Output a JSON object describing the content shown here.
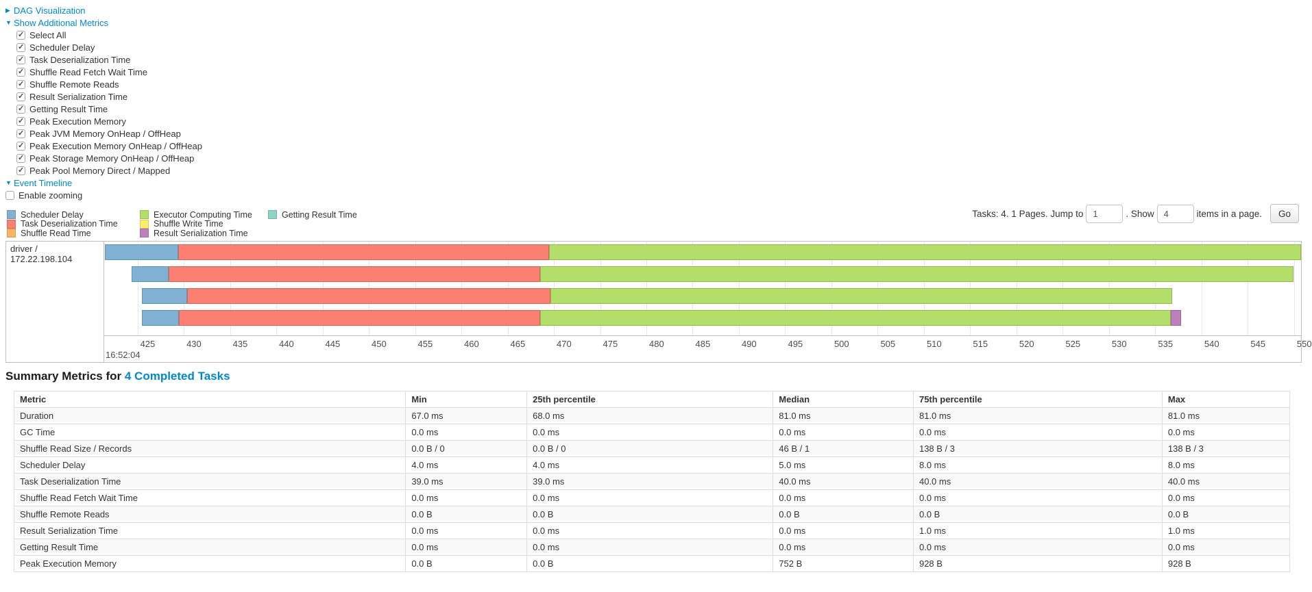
{
  "controls": {
    "dag": {
      "arrow": "▶",
      "label": "DAG Visualization"
    },
    "metrics_toggle": {
      "arrow": "▼",
      "label": "Show Additional Metrics"
    },
    "checkboxes": [
      {
        "label": "Select All",
        "checked": true
      },
      {
        "label": "Scheduler Delay",
        "checked": true
      },
      {
        "label": "Task Deserialization Time",
        "checked": true
      },
      {
        "label": "Shuffle Read Fetch Wait Time",
        "checked": true
      },
      {
        "label": "Shuffle Remote Reads",
        "checked": true
      },
      {
        "label": "Result Serialization Time",
        "checked": true
      },
      {
        "label": "Getting Result Time",
        "checked": true
      },
      {
        "label": "Peak Execution Memory",
        "checked": true
      },
      {
        "label": "Peak JVM Memory OnHeap / OffHeap",
        "checked": true
      },
      {
        "label": "Peak Execution Memory OnHeap / OffHeap",
        "checked": true
      },
      {
        "label": "Peak Storage Memory OnHeap / OffHeap",
        "checked": true
      },
      {
        "label": "Peak Pool Memory Direct / Mapped",
        "checked": true
      }
    ],
    "timeline_toggle": {
      "arrow": "▼",
      "label": "Event Timeline"
    },
    "enable_zooming": {
      "label": "Enable zooming",
      "checked": false
    }
  },
  "legend": {
    "columns": [
      [
        {
          "label": "Scheduler Delay",
          "color": "#80B1D3"
        },
        {
          "label": "Task Deserialization Time",
          "color": "#FB8072"
        },
        {
          "label": "Shuffle Read Time",
          "color": "#FDB462"
        }
      ],
      [
        {
          "label": "Executor Computing Time",
          "color": "#B3DE69"
        },
        {
          "label": "Shuffle Write Time",
          "color": "#FFED6F"
        },
        {
          "label": "Result Serialization Time",
          "color": "#BC80BD"
        }
      ],
      [
        {
          "label": "Getting Result Time",
          "color": "#8DD3C7"
        }
      ]
    ]
  },
  "pagination": {
    "prefix": "Tasks: 4. 1 Pages. Jump to",
    "jump_value": "1",
    "mid": ". Show",
    "show_value": "4",
    "suffix": "items in a page.",
    "go_label": "Go"
  },
  "chart_data": {
    "type": "timeline",
    "group_label": "driver / 172.22.198.104",
    "axis": {
      "domain": [
        421.4,
        550.75
      ],
      "tick_start": 425,
      "tick_end": 550,
      "tick_step": 5,
      "major_label": "16:52:04",
      "units": "seconds-of-minute"
    },
    "palette": {
      "scheduler_delay": "#80B1D3",
      "task_deserialization": "#FB8072",
      "shuffle_read": "#FDB462",
      "executor_computing": "#B3DE69",
      "shuffle_write": "#FFED6F",
      "result_serialization": "#BC80BD",
      "getting_result": "#8DD3C7"
    },
    "tasks": [
      {
        "segments": [
          {
            "k": "scheduler_delay",
            "t0": 421.45,
            "t1": 429.4
          },
          {
            "k": "task_deserialization",
            "t0": 429.4,
            "t1": 469.5
          },
          {
            "k": "executor_computing",
            "t0": 469.5,
            "t1": 550.75
          }
        ]
      },
      {
        "segments": [
          {
            "k": "scheduler_delay",
            "t0": 424.4,
            "t1": 428.4
          },
          {
            "k": "task_deserialization",
            "t0": 428.4,
            "t1": 468.5
          },
          {
            "k": "executor_computing",
            "t0": 468.5,
            "t1": 549.9
          }
        ]
      },
      {
        "segments": [
          {
            "k": "scheduler_delay",
            "t0": 425.5,
            "t1": 430.4
          },
          {
            "k": "task_deserialization",
            "t0": 430.4,
            "t1": 469.6
          },
          {
            "k": "executor_computing",
            "t0": 469.6,
            "t1": 536.8
          }
        ]
      },
      {
        "segments": [
          {
            "k": "scheduler_delay",
            "t0": 425.5,
            "t1": 429.5
          },
          {
            "k": "task_deserialization",
            "t0": 429.5,
            "t1": 468.5
          },
          {
            "k": "executor_computing",
            "t0": 468.5,
            "t1": 536.7
          },
          {
            "k": "result_serialization",
            "t0": 536.7,
            "t1": 537.8
          }
        ]
      }
    ]
  },
  "summary": {
    "title_prefix": "Summary Metrics for",
    "title_link": "4 Completed Tasks",
    "table": {
      "headers": [
        "Metric",
        "Min",
        "25th percentile",
        "Median",
        "75th percentile",
        "Max"
      ],
      "col_widths": [
        "30.7%",
        "9.5%",
        "19.3%",
        "11.0%",
        "19.5%",
        "10.0%"
      ],
      "rows": [
        [
          "Duration",
          "67.0 ms",
          "68.0 ms",
          "81.0 ms",
          "81.0 ms",
          "81.0 ms"
        ],
        [
          "GC Time",
          "0.0 ms",
          "0.0 ms",
          "0.0 ms",
          "0.0 ms",
          "0.0 ms"
        ],
        [
          "Shuffle Read Size / Records",
          "0.0 B / 0",
          "0.0 B / 0",
          "46 B / 1",
          "138 B / 3",
          "138 B / 3"
        ],
        [
          "Scheduler Delay",
          "4.0 ms",
          "4.0 ms",
          "5.0 ms",
          "8.0 ms",
          "8.0 ms"
        ],
        [
          "Task Deserialization Time",
          "39.0 ms",
          "39.0 ms",
          "40.0 ms",
          "40.0 ms",
          "40.0 ms"
        ],
        [
          "Shuffle Read Fetch Wait Time",
          "0.0 ms",
          "0.0 ms",
          "0.0 ms",
          "0.0 ms",
          "0.0 ms"
        ],
        [
          "Shuffle Remote Reads",
          "0.0 B",
          "0.0 B",
          "0.0 B",
          "0.0 B",
          "0.0 B"
        ],
        [
          "Result Serialization Time",
          "0.0 ms",
          "0.0 ms",
          "0.0 ms",
          "1.0 ms",
          "1.0 ms"
        ],
        [
          "Getting Result Time",
          "0.0 ms",
          "0.0 ms",
          "0.0 ms",
          "0.0 ms",
          "0.0 ms"
        ],
        [
          "Peak Execution Memory",
          "0.0 B",
          "0.0 B",
          "752 B",
          "928 B",
          "928 B"
        ]
      ]
    }
  }
}
